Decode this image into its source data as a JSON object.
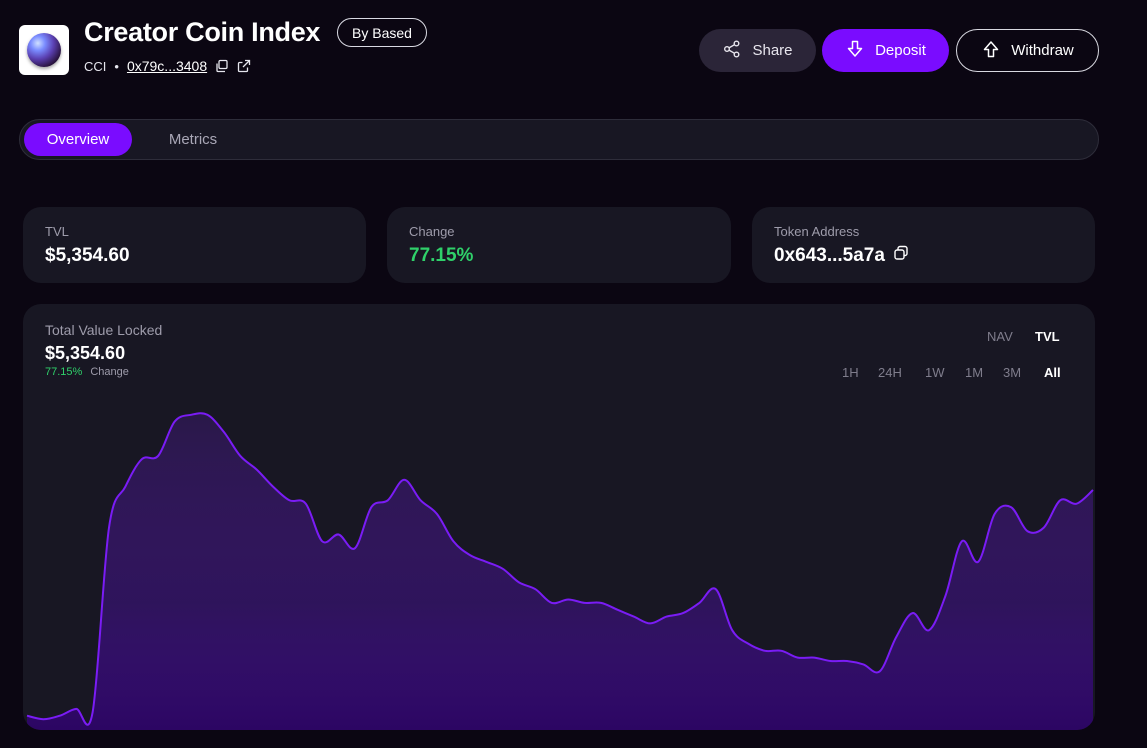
{
  "header": {
    "title": "Creator Coin Index",
    "by_label": "By Based",
    "ticker": "CCI",
    "separator": "•",
    "address": "0x79c...3408",
    "logo_icon": "orb-logo"
  },
  "actions": {
    "share_label": "Share",
    "deposit_label": "Deposit",
    "withdraw_label": "Withdraw"
  },
  "tabs": [
    {
      "label": "Overview",
      "active": true
    },
    {
      "label": "Metrics",
      "active": false
    }
  ],
  "stats": {
    "tvl_label": "TVL",
    "tvl_value": "$5,354.60",
    "change_label": "Change",
    "change_value": "77.15%",
    "token_label": "Token Address",
    "token_value": "0x643...5a7a"
  },
  "chart_panel": {
    "title": "Total Value Locked",
    "value": "$5,354.60",
    "change_value": "77.15%",
    "change_label": "Change",
    "modes": [
      "NAV",
      "TVL"
    ],
    "active_mode": "TVL",
    "ranges": [
      "1H",
      "24H",
      "1W",
      "1M",
      "3M",
      "All"
    ],
    "active_range": "All"
  },
  "colors": {
    "accent": "#7a0cff",
    "positive": "#2fd06a",
    "line": "#7a1cf5",
    "background": "#0b0612",
    "card": "#181723"
  },
  "chart_data": {
    "type": "area",
    "title": "",
    "xlabel": "",
    "ylabel": "",
    "grid": false,
    "ylim": [
      0,
      100
    ],
    "values": [
      3,
      2,
      3,
      5,
      4,
      58,
      70,
      78,
      79,
      89,
      91,
      91,
      86,
      79,
      75,
      70,
      66,
      65,
      54,
      56,
      52,
      64,
      66,
      72,
      66,
      62,
      54,
      50,
      48,
      46,
      42,
      40,
      36,
      37,
      36,
      36,
      34,
      32,
      30,
      32,
      33,
      36,
      40,
      28,
      24,
      22,
      22,
      20,
      20,
      19,
      19,
      18,
      16,
      26,
      33,
      28,
      38,
      54,
      48,
      62,
      64,
      57,
      58,
      66,
      65,
      69
    ]
  }
}
